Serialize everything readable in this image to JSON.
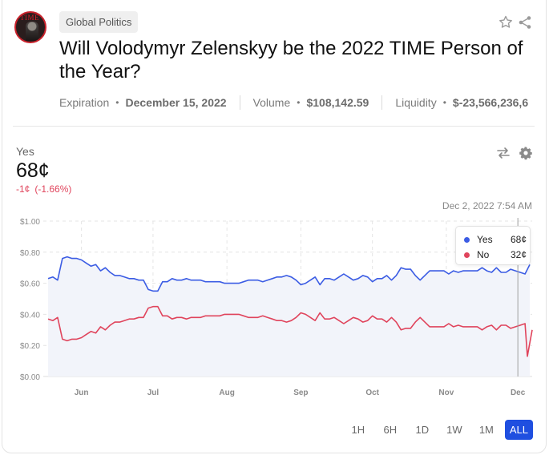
{
  "market": {
    "category": "Global Politics",
    "title": "Will Volodymyr Zelenskyy be the 2022 TIME Person of the Year?",
    "avatar_text": "TIME",
    "meta": {
      "expiration_label": "Expiration",
      "expiration_value": "December 15, 2022",
      "volume_label": "Volume",
      "volume_value": "$108,142.59",
      "liquidity_label": "Liquidity",
      "liquidity_value": "$-23,566,236,6"
    }
  },
  "icons": {
    "star": "star-icon",
    "share": "share-icon",
    "swap": "swap-icon",
    "settings": "gear-icon"
  },
  "outcome": {
    "label": "Yes",
    "price": "68¢",
    "change": "-1¢",
    "change_pct": "(-1.66%)"
  },
  "hover": {
    "time": "Dec 2, 2022 7:54 AM",
    "items": [
      {
        "name": "Yes",
        "value": "68¢",
        "color": "#3b5ce4"
      },
      {
        "name": "No",
        "value": "32¢",
        "color": "#e0445c"
      }
    ]
  },
  "ranges": [
    "1H",
    "6H",
    "1D",
    "1W",
    "1M",
    "ALL"
  ],
  "active_range": "ALL",
  "chart_data": {
    "type": "line",
    "ylabel": "",
    "xlabel": "",
    "ylim": [
      0,
      1
    ],
    "y_ticks": [
      "$0.00",
      "$0.20",
      "$0.40",
      "$0.60",
      "$0.80",
      "$1.00"
    ],
    "y_tick_values": [
      0,
      0.2,
      0.4,
      0.6,
      0.8,
      1.0
    ],
    "x_ticks": [
      {
        "label": "Jun",
        "t": 14
      },
      {
        "label": "Jul",
        "t": 44
      },
      {
        "label": "Aug",
        "t": 75
      },
      {
        "label": "Sep",
        "t": 106
      },
      {
        "label": "Oct",
        "t": 136
      },
      {
        "label": "Nov",
        "t": 167
      },
      {
        "label": "Dec",
        "t": 197
      }
    ],
    "grid": true,
    "t_range": [
      0,
      203
    ],
    "hover_t": 197,
    "series": [
      {
        "name": "Yes",
        "color": "#3b5ce4",
        "points": [
          [
            0,
            0.63
          ],
          [
            2,
            0.64
          ],
          [
            4,
            0.62
          ],
          [
            6,
            0.76
          ],
          [
            8,
            0.77
          ],
          [
            10,
            0.76
          ],
          [
            12,
            0.76
          ],
          [
            14,
            0.75
          ],
          [
            16,
            0.73
          ],
          [
            18,
            0.71
          ],
          [
            20,
            0.72
          ],
          [
            22,
            0.68
          ],
          [
            24,
            0.7
          ],
          [
            26,
            0.67
          ],
          [
            28,
            0.65
          ],
          [
            30,
            0.65
          ],
          [
            32,
            0.64
          ],
          [
            34,
            0.63
          ],
          [
            36,
            0.63
          ],
          [
            38,
            0.62
          ],
          [
            40,
            0.62
          ],
          [
            42,
            0.56
          ],
          [
            44,
            0.55
          ],
          [
            46,
            0.55
          ],
          [
            48,
            0.61
          ],
          [
            50,
            0.61
          ],
          [
            52,
            0.63
          ],
          [
            54,
            0.62
          ],
          [
            56,
            0.62
          ],
          [
            58,
            0.63
          ],
          [
            60,
            0.62
          ],
          [
            62,
            0.62
          ],
          [
            64,
            0.62
          ],
          [
            66,
            0.61
          ],
          [
            68,
            0.61
          ],
          [
            70,
            0.61
          ],
          [
            72,
            0.61
          ],
          [
            74,
            0.6
          ],
          [
            76,
            0.6
          ],
          [
            78,
            0.6
          ],
          [
            80,
            0.6
          ],
          [
            82,
            0.61
          ],
          [
            84,
            0.62
          ],
          [
            86,
            0.62
          ],
          [
            88,
            0.62
          ],
          [
            90,
            0.61
          ],
          [
            92,
            0.62
          ],
          [
            94,
            0.63
          ],
          [
            96,
            0.64
          ],
          [
            98,
            0.64
          ],
          [
            100,
            0.65
          ],
          [
            102,
            0.64
          ],
          [
            104,
            0.62
          ],
          [
            106,
            0.59
          ],
          [
            108,
            0.6
          ],
          [
            110,
            0.62
          ],
          [
            112,
            0.64
          ],
          [
            114,
            0.59
          ],
          [
            116,
            0.63
          ],
          [
            118,
            0.63
          ],
          [
            120,
            0.62
          ],
          [
            122,
            0.64
          ],
          [
            124,
            0.66
          ],
          [
            126,
            0.64
          ],
          [
            128,
            0.62
          ],
          [
            130,
            0.63
          ],
          [
            132,
            0.65
          ],
          [
            134,
            0.64
          ],
          [
            136,
            0.61
          ],
          [
            138,
            0.63
          ],
          [
            140,
            0.63
          ],
          [
            142,
            0.65
          ],
          [
            144,
            0.62
          ],
          [
            146,
            0.65
          ],
          [
            148,
            0.7
          ],
          [
            150,
            0.69
          ],
          [
            152,
            0.69
          ],
          [
            154,
            0.65
          ],
          [
            156,
            0.62
          ],
          [
            158,
            0.65
          ],
          [
            160,
            0.68
          ],
          [
            162,
            0.68
          ],
          [
            164,
            0.68
          ],
          [
            166,
            0.68
          ],
          [
            168,
            0.66
          ],
          [
            170,
            0.68
          ],
          [
            172,
            0.67
          ],
          [
            174,
            0.68
          ],
          [
            176,
            0.68
          ],
          [
            178,
            0.68
          ],
          [
            180,
            0.68
          ],
          [
            182,
            0.7
          ],
          [
            184,
            0.68
          ],
          [
            186,
            0.67
          ],
          [
            188,
            0.7
          ],
          [
            190,
            0.67
          ],
          [
            192,
            0.67
          ],
          [
            194,
            0.69
          ],
          [
            196,
            0.68
          ],
          [
            198,
            0.67
          ],
          [
            200,
            0.66
          ],
          [
            202,
            0.72
          ]
        ]
      },
      {
        "name": "No",
        "color": "#e0445c",
        "points": [
          [
            0,
            0.37
          ],
          [
            2,
            0.36
          ],
          [
            4,
            0.38
          ],
          [
            6,
            0.24
          ],
          [
            8,
            0.23
          ],
          [
            10,
            0.24
          ],
          [
            12,
            0.24
          ],
          [
            14,
            0.25
          ],
          [
            16,
            0.27
          ],
          [
            18,
            0.29
          ],
          [
            20,
            0.28
          ],
          [
            22,
            0.32
          ],
          [
            24,
            0.3
          ],
          [
            26,
            0.33
          ],
          [
            28,
            0.35
          ],
          [
            30,
            0.35
          ],
          [
            32,
            0.36
          ],
          [
            34,
            0.37
          ],
          [
            36,
            0.37
          ],
          [
            38,
            0.38
          ],
          [
            40,
            0.38
          ],
          [
            42,
            0.44
          ],
          [
            44,
            0.45
          ],
          [
            46,
            0.45
          ],
          [
            48,
            0.39
          ],
          [
            50,
            0.39
          ],
          [
            52,
            0.37
          ],
          [
            54,
            0.38
          ],
          [
            56,
            0.38
          ],
          [
            58,
            0.37
          ],
          [
            60,
            0.38
          ],
          [
            62,
            0.38
          ],
          [
            64,
            0.38
          ],
          [
            66,
            0.39
          ],
          [
            68,
            0.39
          ],
          [
            70,
            0.39
          ],
          [
            72,
            0.39
          ],
          [
            74,
            0.4
          ],
          [
            76,
            0.4
          ],
          [
            78,
            0.4
          ],
          [
            80,
            0.4
          ],
          [
            82,
            0.39
          ],
          [
            84,
            0.38
          ],
          [
            86,
            0.38
          ],
          [
            88,
            0.38
          ],
          [
            90,
            0.39
          ],
          [
            92,
            0.38
          ],
          [
            94,
            0.37
          ],
          [
            96,
            0.36
          ],
          [
            98,
            0.36
          ],
          [
            100,
            0.35
          ],
          [
            102,
            0.36
          ],
          [
            104,
            0.38
          ],
          [
            106,
            0.41
          ],
          [
            108,
            0.4
          ],
          [
            110,
            0.38
          ],
          [
            112,
            0.36
          ],
          [
            114,
            0.41
          ],
          [
            116,
            0.37
          ],
          [
            118,
            0.37
          ],
          [
            120,
            0.38
          ],
          [
            122,
            0.36
          ],
          [
            124,
            0.34
          ],
          [
            126,
            0.36
          ],
          [
            128,
            0.38
          ],
          [
            130,
            0.37
          ],
          [
            132,
            0.35
          ],
          [
            134,
            0.36
          ],
          [
            136,
            0.39
          ],
          [
            138,
            0.37
          ],
          [
            140,
            0.37
          ],
          [
            142,
            0.35
          ],
          [
            144,
            0.38
          ],
          [
            146,
            0.35
          ],
          [
            148,
            0.3
          ],
          [
            150,
            0.31
          ],
          [
            152,
            0.31
          ],
          [
            154,
            0.35
          ],
          [
            156,
            0.38
          ],
          [
            158,
            0.35
          ],
          [
            160,
            0.32
          ],
          [
            162,
            0.32
          ],
          [
            164,
            0.32
          ],
          [
            166,
            0.32
          ],
          [
            168,
            0.34
          ],
          [
            170,
            0.32
          ],
          [
            172,
            0.33
          ],
          [
            174,
            0.32
          ],
          [
            176,
            0.32
          ],
          [
            178,
            0.32
          ],
          [
            180,
            0.32
          ],
          [
            182,
            0.3
          ],
          [
            184,
            0.32
          ],
          [
            186,
            0.33
          ],
          [
            188,
            0.3
          ],
          [
            190,
            0.33
          ],
          [
            192,
            0.33
          ],
          [
            194,
            0.31
          ],
          [
            196,
            0.32
          ],
          [
            198,
            0.33
          ],
          [
            200,
            0.34
          ],
          [
            201,
            0.13
          ],
          [
            203,
            0.3
          ]
        ]
      }
    ]
  }
}
